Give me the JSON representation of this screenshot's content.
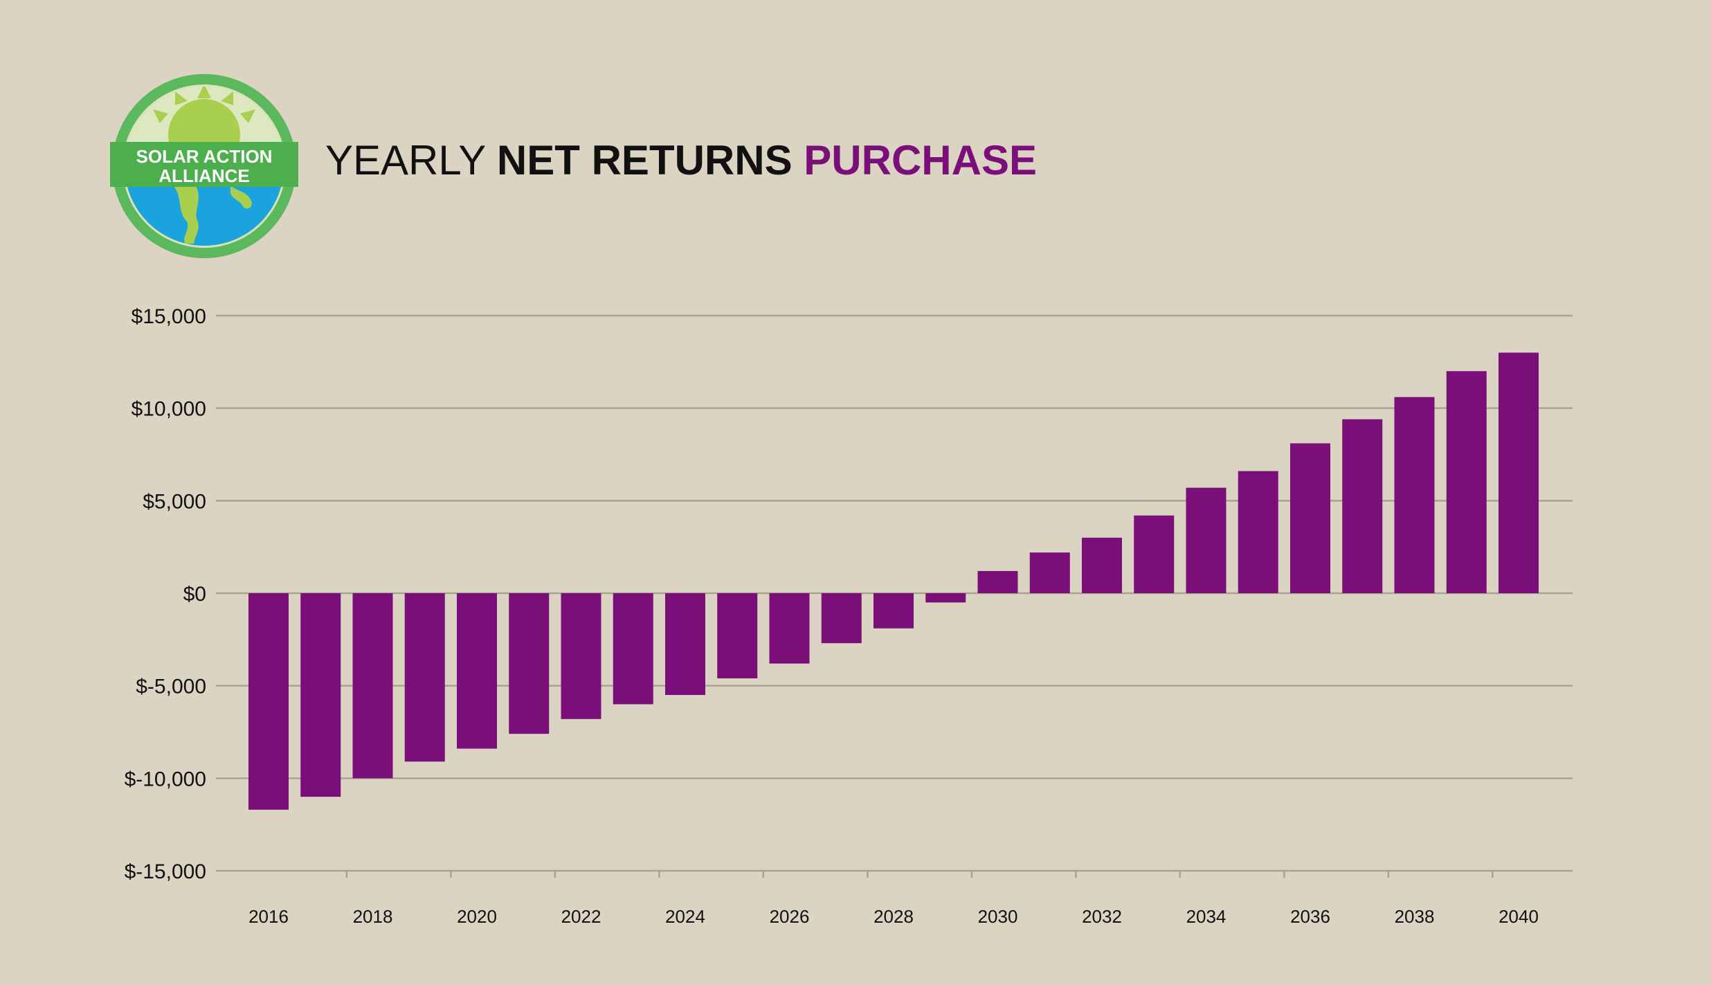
{
  "logo": {
    "line1": "SOLAR ACTION",
    "line2": "ALLIANCE",
    "colors": {
      "ring": "#5cb85c",
      "sun": "#a9cf4f",
      "band": "#4cae4c",
      "ocean": "#1aa3dc",
      "land": "#a9cf4f"
    }
  },
  "title": {
    "part1": "YEARLY ",
    "part2": "NET RETURNS",
    "part3": " PURCHASE",
    "accent_color": "#7b0f7a"
  },
  "chart_data": {
    "type": "bar",
    "categories": [
      "2016",
      "2017",
      "2018",
      "2019",
      "2020",
      "2021",
      "2022",
      "2023",
      "2024",
      "2025",
      "2026",
      "2027",
      "2028",
      "2029",
      "2030",
      "2031",
      "2032",
      "2033",
      "2034",
      "2035",
      "2036",
      "2037",
      "2038",
      "2039",
      "2040"
    ],
    "values": [
      -11700,
      -11000,
      -10000,
      -9100,
      -8400,
      -7600,
      -6800,
      -6000,
      -5500,
      -4600,
      -3800,
      -2700,
      -1900,
      -500,
      1200,
      2200,
      3000,
      4200,
      5700,
      6600,
      8100,
      9400,
      10600,
      12000,
      13000
    ],
    "x_tick_labels": [
      "2016",
      "2018",
      "2020",
      "2022",
      "2024",
      "2026",
      "2028",
      "2030",
      "2032",
      "2034",
      "2036",
      "2038",
      "2040"
    ],
    "y_tick_labels": [
      "$15,000",
      "$10,000",
      "$5,000",
      "$0",
      "$-5,000",
      "$-10,000",
      "$-15,000"
    ],
    "y_ticks": [
      15000,
      10000,
      5000,
      0,
      -5000,
      -10000,
      -15000
    ],
    "ylim": [
      -15000,
      15000
    ],
    "bar_color": "#7b0f7a",
    "grid": true,
    "legend": "none",
    "title": "",
    "xlabel": "",
    "ylabel": ""
  }
}
